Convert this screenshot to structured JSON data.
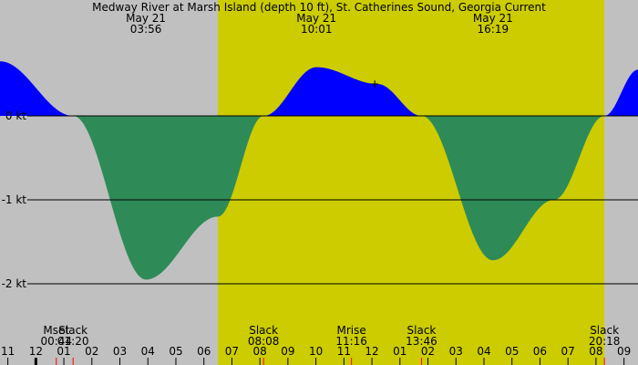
{
  "chart_data": {
    "type": "area",
    "title": "Medway River at Marsh Island (depth 10 ft), St. Catherines Sound, Georgia Current",
    "date_labels": [
      {
        "date": "May 21",
        "time": "03:56",
        "hour": 3.93
      },
      {
        "date": "May 21",
        "time": "10:01",
        "hour": 10.02
      },
      {
        "date": "May 21",
        "time": "16:19",
        "hour": 16.32
      }
    ],
    "units": "kt",
    "ylim": [
      -2.5,
      0.65
    ],
    "y_ticks": [
      {
        "value": 0,
        "label": "0 kt"
      },
      {
        "value": -1,
        "label": "-1 kt"
      },
      {
        "value": -2,
        "label": "-2 kt"
      }
    ],
    "x_range_hours": [
      -1.28,
      21.5
    ],
    "daylight_hours": [
      6.5,
      20.3
    ],
    "x_tick_labels": [
      {
        "hour": -1,
        "label": "11"
      },
      {
        "hour": 0,
        "label": "12"
      },
      {
        "hour": 1,
        "label": "01"
      },
      {
        "hour": 2,
        "label": "02"
      },
      {
        "hour": 3,
        "label": "03"
      },
      {
        "hour": 4,
        "label": "04"
      },
      {
        "hour": 5,
        "label": "05"
      },
      {
        "hour": 6,
        "label": "06"
      },
      {
        "hour": 7,
        "label": "07"
      },
      {
        "hour": 8,
        "label": "08"
      },
      {
        "hour": 9,
        "label": "09"
      },
      {
        "hour": 10,
        "label": "10"
      },
      {
        "hour": 11,
        "label": "11"
      },
      {
        "hour": 12,
        "label": "12"
      },
      {
        "hour": 13,
        "label": "01"
      },
      {
        "hour": 14,
        "label": "02"
      },
      {
        "hour": 15,
        "label": "03"
      },
      {
        "hour": 16,
        "label": "04"
      },
      {
        "hour": 17,
        "label": "05"
      },
      {
        "hour": 18,
        "label": "06"
      },
      {
        "hour": 19,
        "label": "07"
      },
      {
        "hour": 20,
        "label": "08"
      },
      {
        "hour": 21,
        "label": "09"
      }
    ],
    "events": [
      {
        "label": "Mset",
        "time": "00:44",
        "hour": 0.73
      },
      {
        "label": "Slack",
        "time": "01:20",
        "hour": 1.33
      },
      {
        "label": "Slack",
        "time": "08:08",
        "hour": 8.13
      },
      {
        "label": "Mrise",
        "time": "11:16",
        "hour": 11.27
      },
      {
        "label": "Slack",
        "time": "13:46",
        "hour": 13.77
      },
      {
        "label": "Slack",
        "time": "20:18",
        "hour": 20.3
      }
    ],
    "series": [
      {
        "x": [
          -1.28,
          1.33,
          3.93,
          6.5,
          8.13,
          10.02,
          12.2,
          13.77,
          16.32,
          18.5,
          20.3,
          21.5
        ],
        "y": [
          0.65,
          0.0,
          -1.95,
          -1.2,
          0.0,
          0.58,
          0.38,
          0.0,
          -1.72,
          -1.0,
          0.0,
          0.55
        ]
      }
    ],
    "colors": {
      "background": "#c0c0c0",
      "daylight": "#cccc00",
      "flood": "#0000ff",
      "ebb": "#2e8b57",
      "grid": "#000000"
    }
  }
}
